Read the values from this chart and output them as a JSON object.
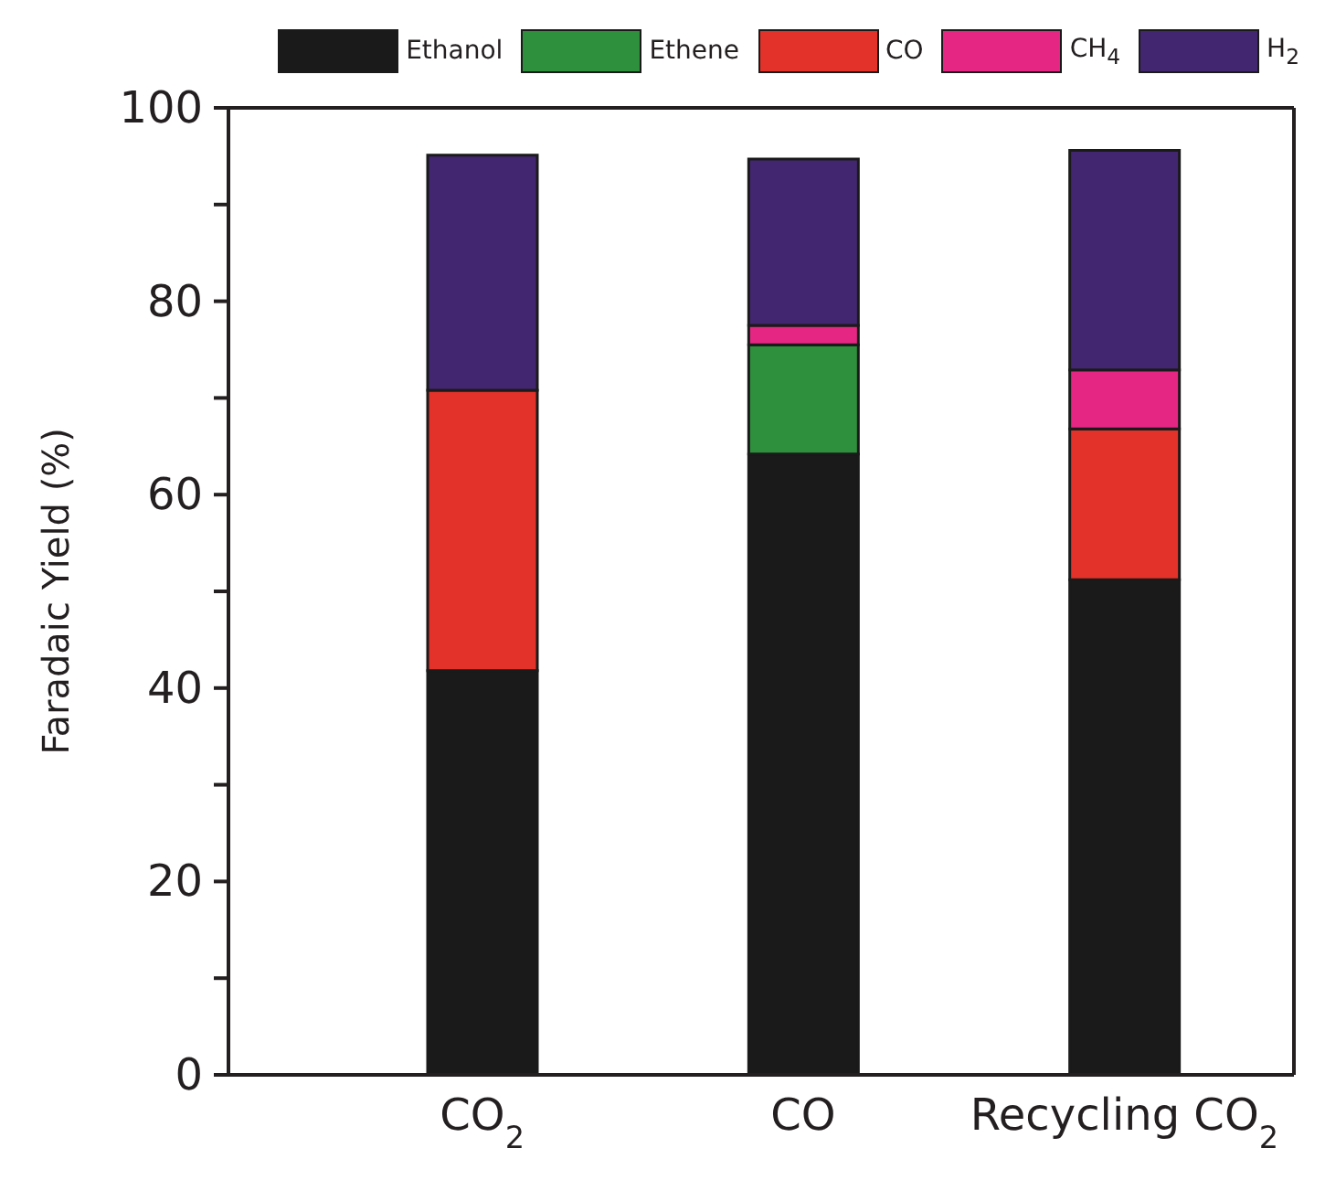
{
  "chart_data": {
    "type": "bar",
    "stacked": true,
    "ylabel": "Faradaic Yield (%)",
    "categories": [
      "CO$_{2}$",
      "CO",
      "Recycling CO$_{2}$"
    ],
    "series": [
      {
        "name": "Ethanol",
        "color": "#1a1a1a",
        "values": [
          41.8,
          64.2,
          51.2
        ]
      },
      {
        "name": "Ethene",
        "color": "#2e8f3c",
        "values": [
          0,
          11.3,
          0
        ]
      },
      {
        "name": "CO",
        "color": "#e2322a",
        "values": [
          29,
          0,
          15.6
        ]
      },
      {
        "name": "CH$_{4}$",
        "color": "#e52783",
        "values": [
          0,
          2,
          6.1
        ]
      },
      {
        "name": "H$_{2}$",
        "color": "#432670",
        "values": [
          24.3,
          17.2,
          22.7
        ]
      }
    ],
    "ylim": [
      0,
      100
    ],
    "yticks": [
      0,
      {
        "value": 10,
        "label": null
      },
      20,
      {
        "value": 30,
        "label": null
      },
      40,
      {
        "value": 50,
        "label": null
      },
      60,
      {
        "value": 70,
        "label": null
      },
      80,
      {
        "value": 90,
        "label": null
      },
      100
    ],
    "grid": false,
    "legend": "top"
  }
}
